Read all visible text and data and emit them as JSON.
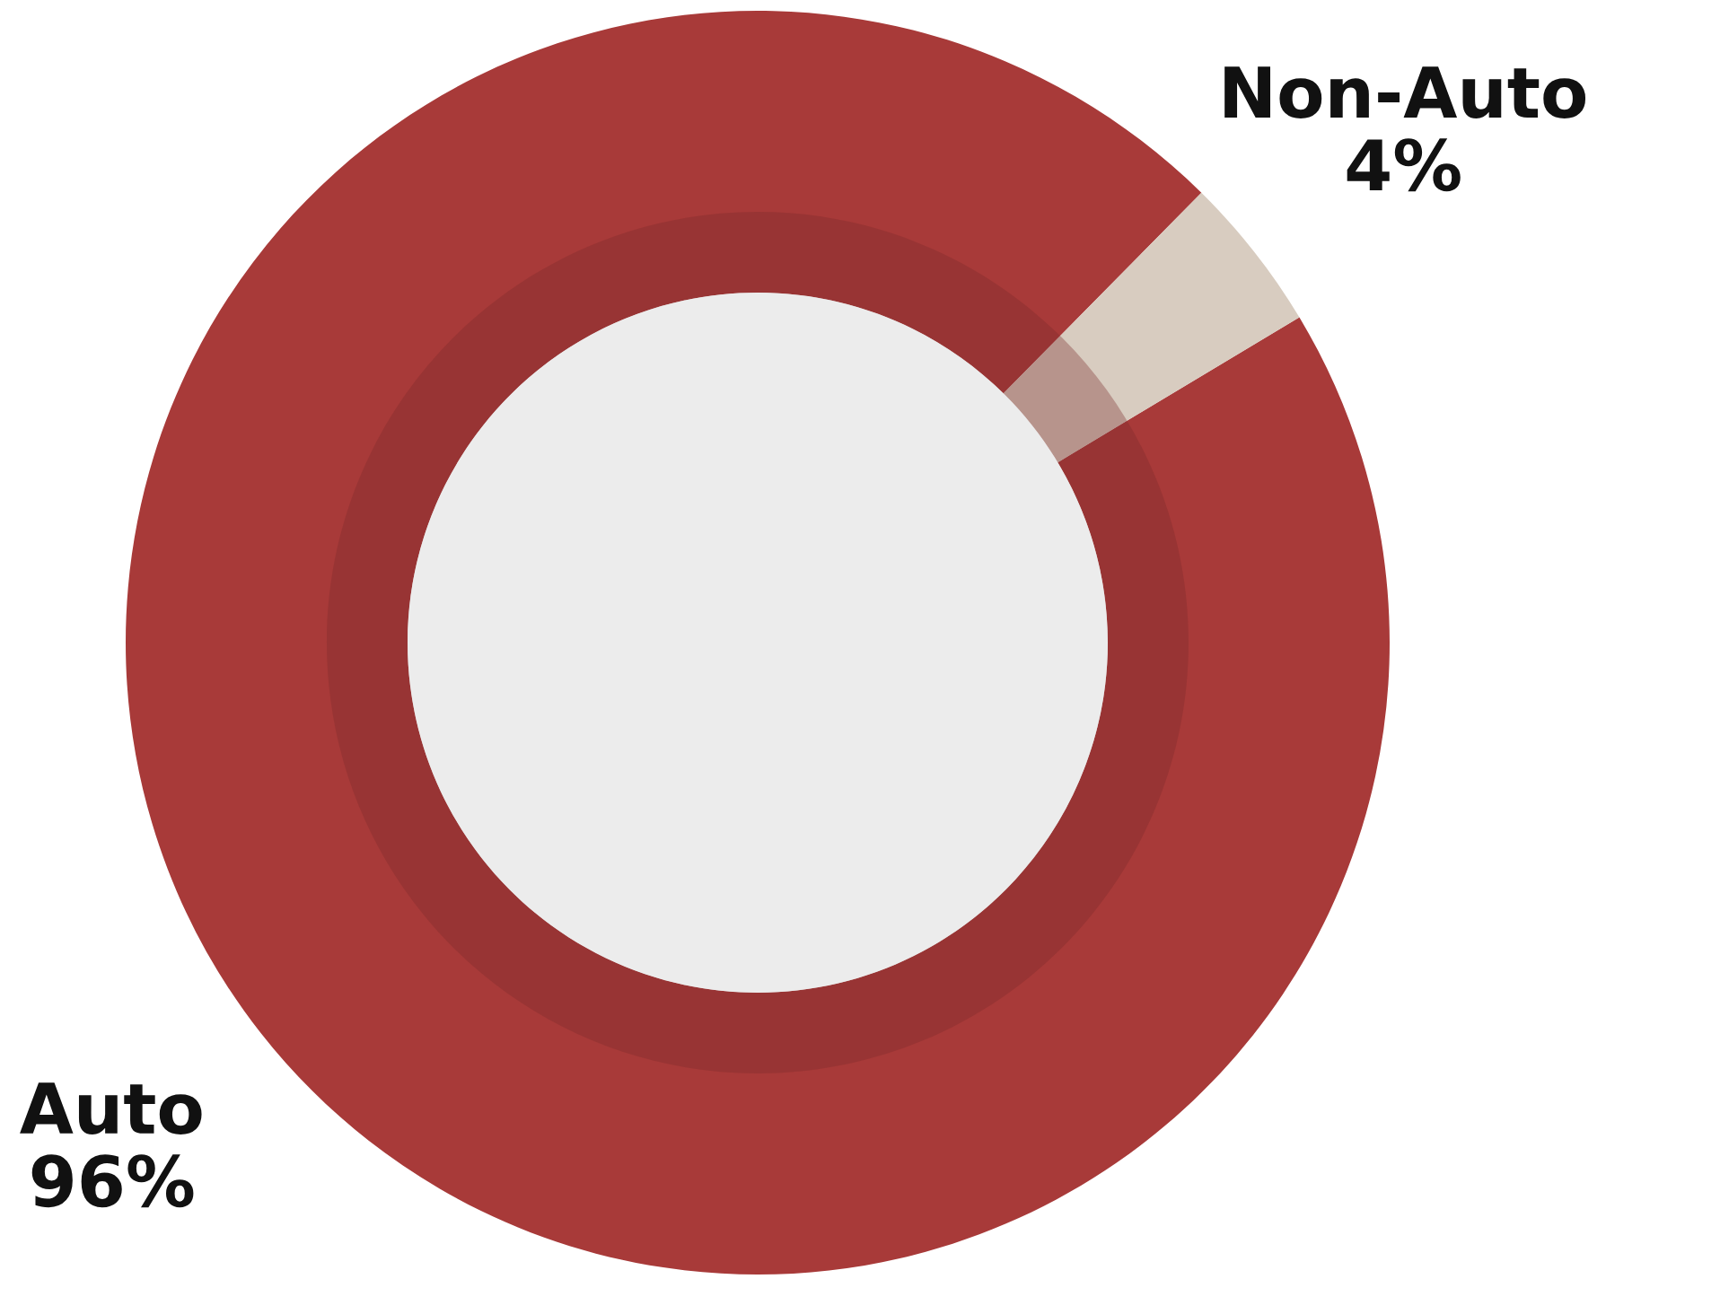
{
  "chart_data": {
    "type": "donut",
    "categories": [
      "Auto",
      "Non-Auto"
    ],
    "values": [
      96,
      4
    ],
    "colors": [
      "#a83a39",
      "#d8ccc0"
    ],
    "value_labels": [
      "96%",
      "4%"
    ],
    "legend": false
  }
}
